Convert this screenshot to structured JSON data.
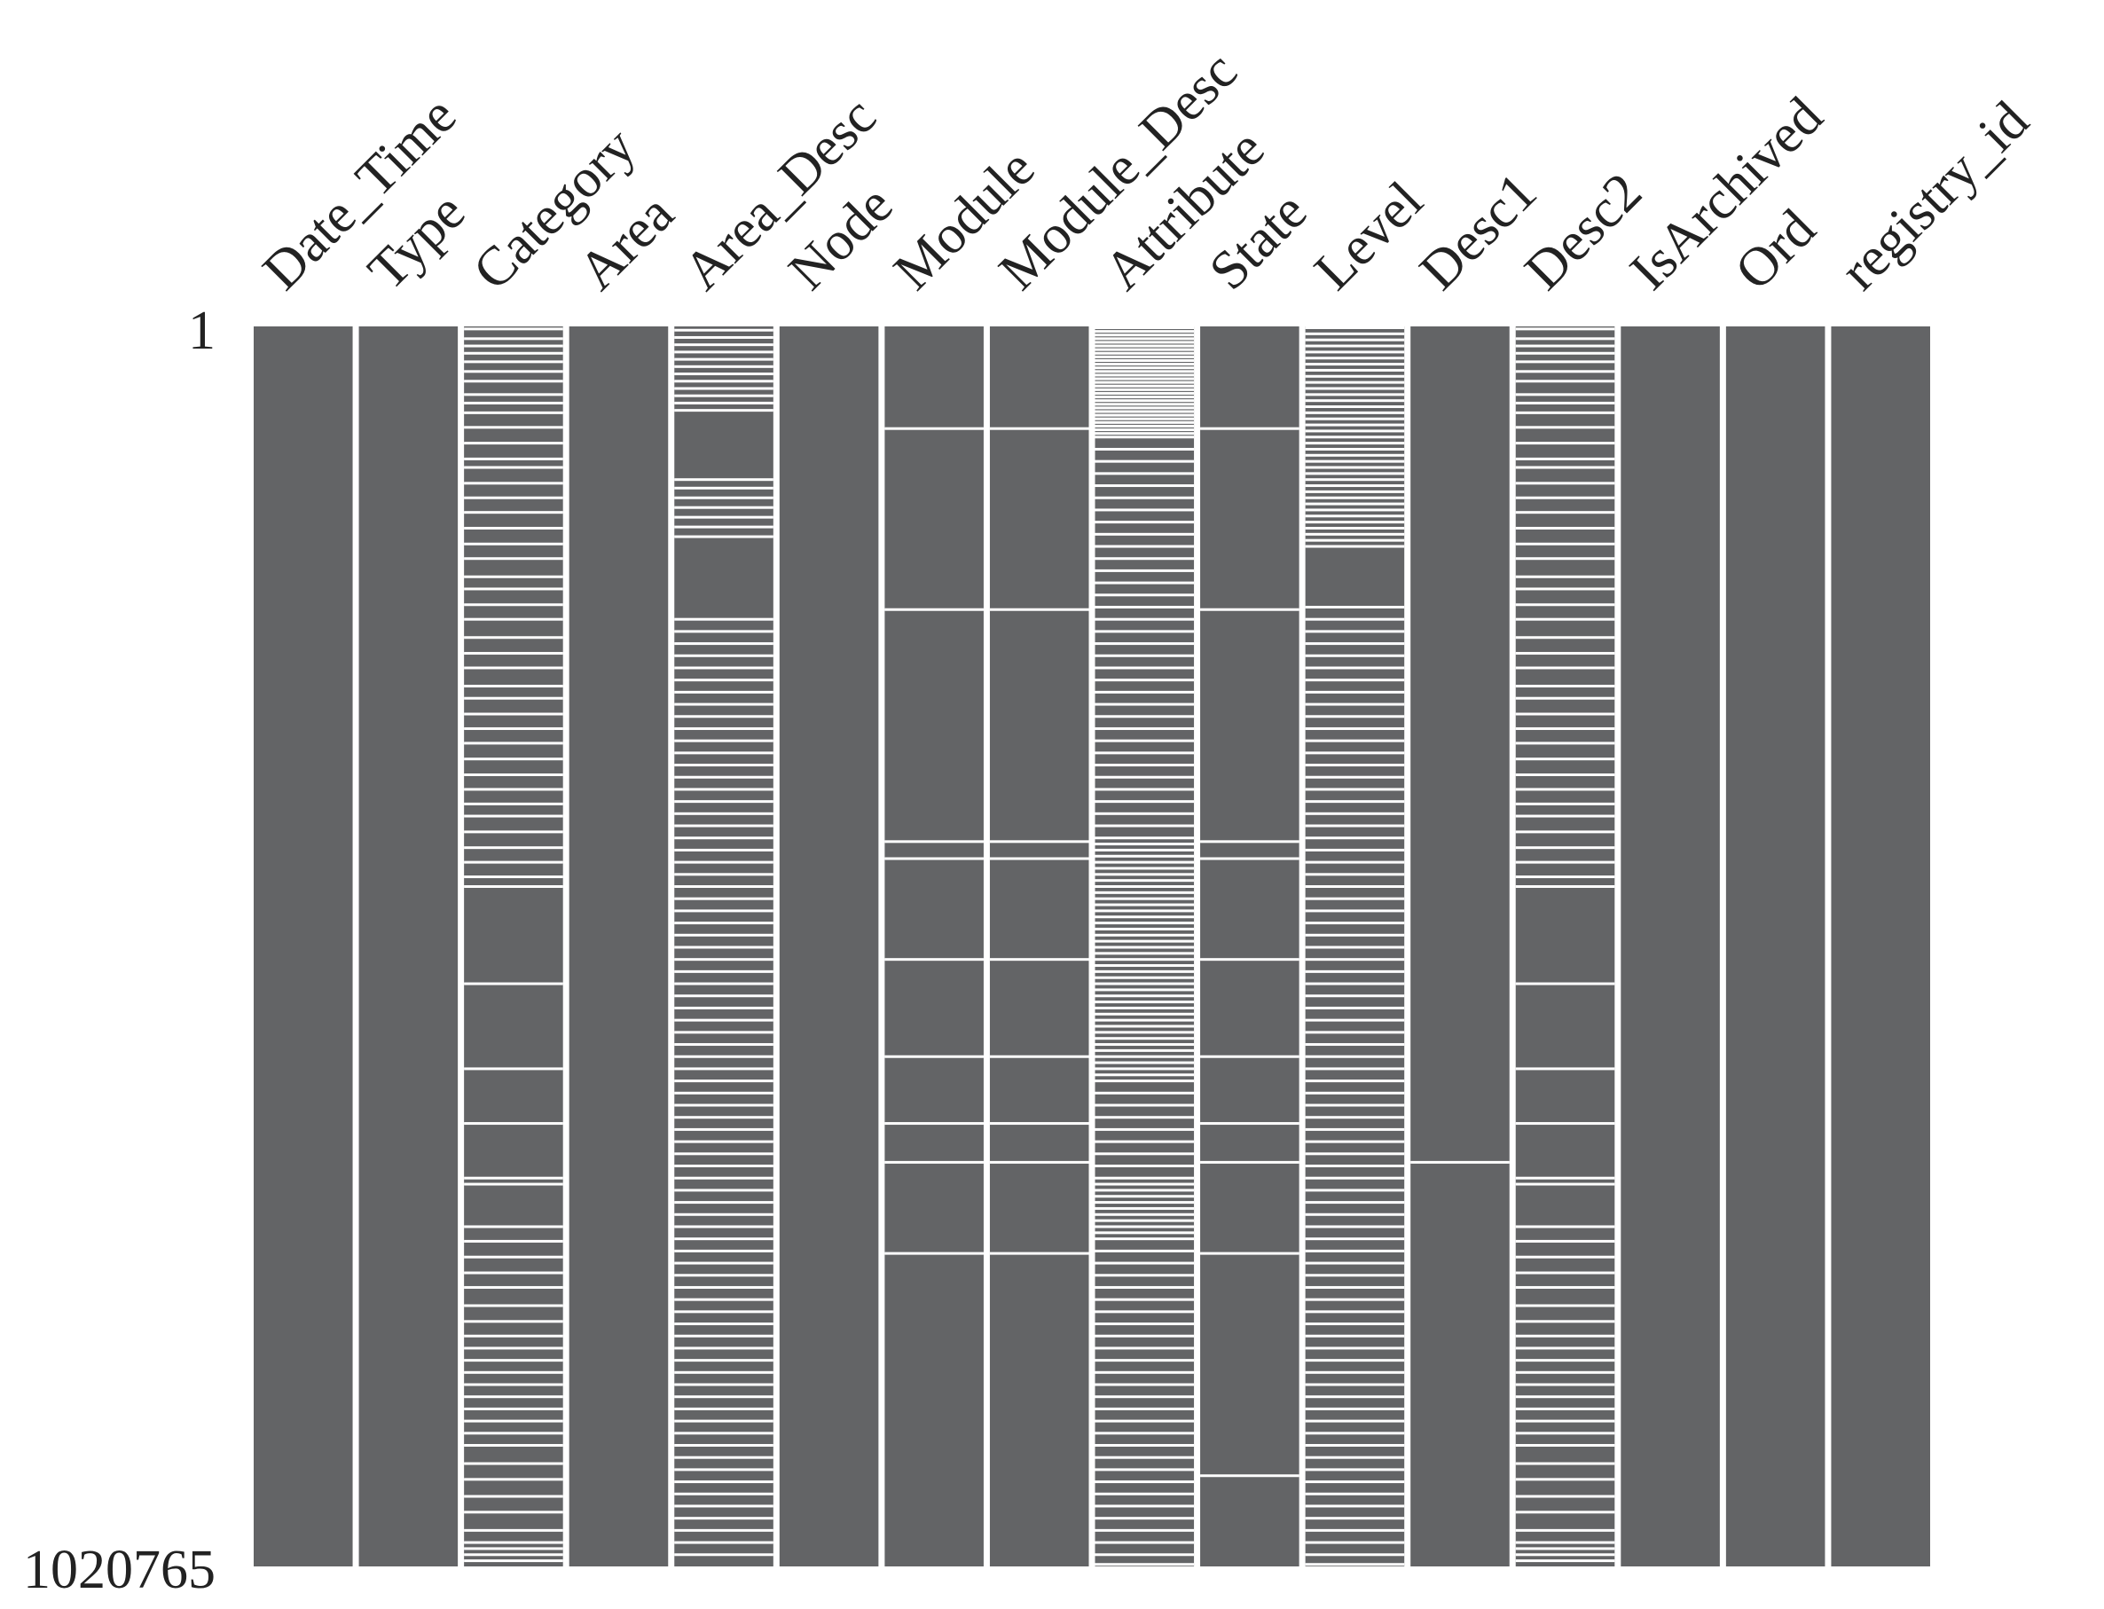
{
  "chart_data": {
    "type": "missingness-matrix",
    "title": "",
    "total_rows": 1020765,
    "row_labels": [
      "1",
      "1020765"
    ],
    "colors": {
      "present": "#636466",
      "missing": "#ffffff",
      "background": "#ffffff"
    },
    "columns": [
      {
        "name": "Date_Time",
        "missing_rows": []
      },
      {
        "name": "Type",
        "missing_rows": []
      },
      {
        "name": "Category",
        "missing_rows": [
          1000,
          9000,
          15000,
          21000,
          28000,
          36000,
          44000,
          55000,
          62000,
          70000,
          82000,
          95000,
          108000,
          115000,
          128000,
          140000,
          152000,
          165000,
          178000,
          190000,
          205000,
          215000,
          228000,
          240000,
          255000,
          268000,
          280000,
          295000,
          305000,
          318000,
          330000,
          342000,
          355000,
          368000,
          380000,
          392000,
          402000,
          415000,
          428000,
          440000,
          452000,
          460000,
          540000,
          610000,
          655000,
          700000,
          705000,
          740000,
          752000,
          765000,
          778000,
          790000,
          805000,
          818000,
          830000,
          840000,
          850000,
          860000,
          870000,
          880000,
          890000,
          900000,
          910000,
          920000,
          935000,
          948000,
          962000,
          975000,
          990000,
          1000000,
          1005000,
          1010000,
          1015000
        ]
      },
      {
        "name": "Area",
        "missing_rows": []
      },
      {
        "name": "Area_Desc",
        "missing_rows": [
          2000,
          8000,
          14000,
          20000,
          26000,
          32000,
          38000,
          44000,
          50000,
          56000,
          62000,
          68000,
          125000,
          132000,
          140000,
          148000,
          156000,
          164000,
          172000,
          240000,
          250000,
          260000,
          270000,
          280000,
          290000,
          300000,
          310000,
          320000,
          330000,
          340000,
          350000,
          360000,
          370000,
          380000,
          390000,
          400000,
          410000,
          420000,
          430000,
          440000,
          450000,
          460000,
          470000,
          480000,
          490000,
          500000,
          510000,
          520000,
          530000,
          540000,
          550000,
          560000,
          570000,
          580000,
          590000,
          600000,
          610000,
          620000,
          630000,
          640000,
          650000,
          660000,
          670000,
          680000,
          690000,
          700000,
          710000,
          720000,
          730000,
          740000,
          750000,
          760000,
          770000,
          780000,
          790000,
          800000,
          810000,
          820000,
          830000,
          840000,
          850000,
          860000,
          870000,
          880000,
          890000,
          900000,
          910000,
          920000,
          930000,
          940000,
          950000,
          960000,
          970000,
          980000,
          990000,
          1000000,
          1010000
        ]
      },
      {
        "name": "Node",
        "missing_rows": []
      },
      {
        "name": "Module",
        "missing_rows": [
          83000,
          232000,
          423000,
          437000,
          520000,
          600000,
          655000,
          687000,
          762000
        ]
      },
      {
        "name": "Module_Desc",
        "missing_rows": [
          83000,
          232000,
          423000,
          437000,
          520000,
          600000,
          655000,
          687000,
          762000
        ]
      },
      {
        "name": "Attribute",
        "missing_rows": [
          0,
          3000,
          6000,
          9000,
          12000,
          15000,
          18000,
          21000,
          24000,
          27000,
          30000,
          33000,
          36000,
          39000,
          42000,
          45000,
          48000,
          51000,
          54000,
          57000,
          60000,
          63000,
          66000,
          69000,
          72000,
          75000,
          78000,
          81000,
          84000,
          87000,
          90000,
          100000,
          110000,
          120000,
          130000,
          140000,
          150000,
          160000,
          170000,
          180000,
          190000,
          200000,
          210000,
          220000,
          230000,
          240000,
          250000,
          260000,
          270000,
          280000,
          290000,
          300000,
          310000,
          320000,
          330000,
          340000,
          350000,
          360000,
          370000,
          380000,
          390000,
          400000,
          410000,
          420000,
          425000,
          430000,
          435000,
          440000,
          445000,
          450000,
          455000,
          460000,
          465000,
          470000,
          475000,
          480000,
          485000,
          490000,
          495000,
          500000,
          505000,
          510000,
          515000,
          520000,
          525000,
          530000,
          535000,
          540000,
          545000,
          550000,
          555000,
          560000,
          565000,
          570000,
          575000,
          580000,
          585000,
          590000,
          595000,
          600000,
          605000,
          610000,
          615000,
          620000,
          630000,
          640000,
          650000,
          660000,
          670000,
          680000,
          690000,
          700000,
          705000,
          710000,
          715000,
          720000,
          725000,
          730000,
          735000,
          740000,
          745000,
          750000,
          760000,
          770000,
          780000,
          790000,
          800000,
          810000,
          820000,
          830000,
          840000,
          850000,
          860000,
          870000,
          880000,
          890000,
          900000,
          910000,
          920000,
          930000,
          940000,
          950000,
          960000,
          970000,
          980000,
          990000,
          1000000,
          1010000,
          1018000
        ]
      },
      {
        "name": "State",
        "missing_rows": [
          83000,
          232000,
          423000,
          437000,
          520000,
          600000,
          655000,
          687000,
          762000,
          945000
        ]
      },
      {
        "name": "Level",
        "missing_rows": [
          0,
          5000,
          10000,
          15000,
          20000,
          25000,
          30000,
          35000,
          40000,
          45000,
          50000,
          55000,
          60000,
          65000,
          70000,
          75000,
          80000,
          85000,
          90000,
          95000,
          100000,
          105000,
          110000,
          115000,
          120000,
          125000,
          130000,
          135000,
          140000,
          145000,
          150000,
          155000,
          160000,
          165000,
          170000,
          175000,
          180000,
          230000,
          240000,
          250000,
          260000,
          270000,
          280000,
          290000,
          300000,
          310000,
          320000,
          330000,
          340000,
          350000,
          360000,
          370000,
          380000,
          390000,
          400000,
          410000,
          420000,
          430000,
          440000,
          450000,
          460000,
          470000,
          480000,
          490000,
          500000,
          510000,
          520000,
          530000,
          540000,
          550000,
          560000,
          570000,
          580000,
          590000,
          600000,
          610000,
          620000,
          630000,
          640000,
          650000,
          660000,
          670000,
          680000,
          690000,
          700000,
          710000,
          720000,
          730000,
          740000,
          750000,
          760000,
          770000,
          780000,
          790000,
          800000,
          810000,
          820000,
          830000,
          840000,
          850000,
          860000,
          870000,
          880000,
          890000,
          900000,
          910000,
          920000,
          930000,
          940000,
          950000,
          960000,
          970000,
          980000,
          990000,
          1000000,
          1010000,
          1018000
        ]
      },
      {
        "name": "Desc1",
        "missing_rows": [
          687000
        ]
      },
      {
        "name": "Desc2",
        "missing_rows": [
          1000,
          9000,
          15000,
          21000,
          28000,
          36000,
          44000,
          55000,
          62000,
          70000,
          82000,
          95000,
          108000,
          115000,
          128000,
          140000,
          152000,
          165000,
          178000,
          190000,
          205000,
          215000,
          228000,
          240000,
          255000,
          268000,
          280000,
          295000,
          305000,
          318000,
          330000,
          342000,
          355000,
          368000,
          380000,
          392000,
          402000,
          415000,
          428000,
          440000,
          452000,
          460000,
          540000,
          610000,
          655000,
          700000,
          705000,
          740000,
          752000,
          765000,
          778000,
          790000,
          805000,
          818000,
          830000,
          840000,
          850000,
          860000,
          870000,
          880000,
          890000,
          900000,
          910000,
          920000,
          935000,
          948000,
          962000,
          975000,
          990000,
          1000000,
          1005000,
          1010000,
          1015000
        ]
      },
      {
        "name": "IsArchived",
        "missing_rows": []
      },
      {
        "name": "Ord",
        "missing_rows": []
      },
      {
        "name": "registry_id",
        "missing_rows": []
      }
    ]
  }
}
